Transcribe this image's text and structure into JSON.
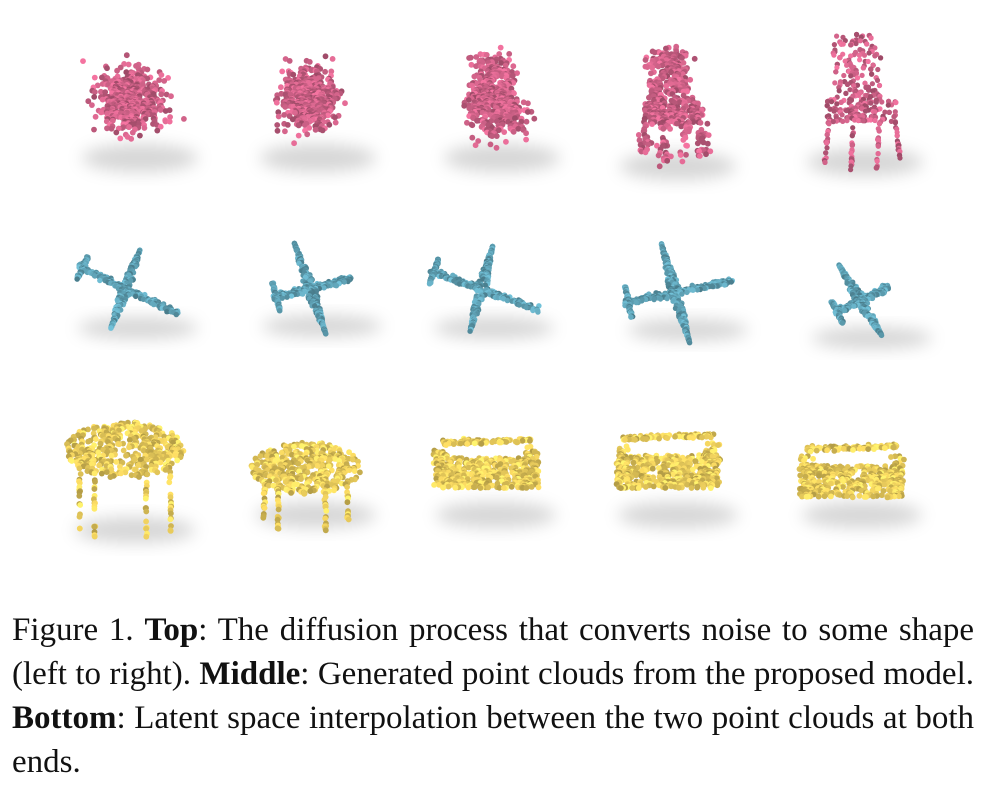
{
  "figure": {
    "rows": [
      {
        "name": "chair-diffusion-row",
        "color": "#c95f84",
        "cells": 5
      },
      {
        "name": "airplane-generated-row",
        "color": "#5d9eb1",
        "cells": 5
      },
      {
        "name": "sofa-interpolation-row",
        "color": "#e5c85a",
        "cells": 5
      }
    ]
  },
  "caption": {
    "label": "Figure 1.",
    "top_bold": "Top",
    "top_text": ": The diffusion process that converts noise to some shape (left to right).",
    "middle_bold": "Middle",
    "middle_text": ": Generated point clouds from the proposed model.",
    "bottom_bold": "Bottom",
    "bottom_text": ": Latent space interpolation between the two point clouds at both ends."
  }
}
